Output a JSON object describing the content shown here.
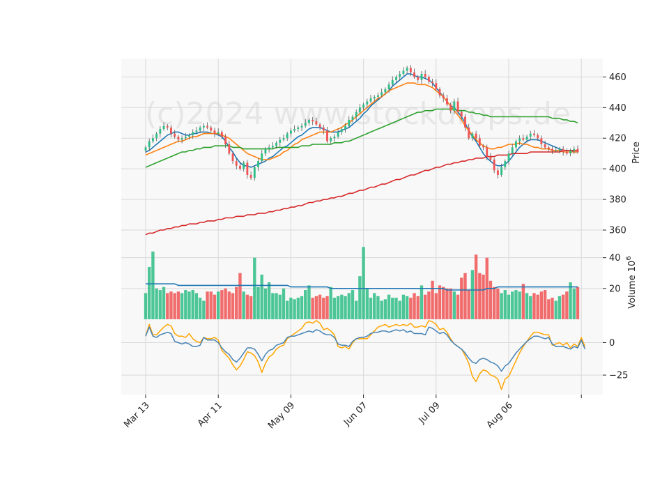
{
  "chart_data": {
    "type": "candlestick",
    "watermark": "(c)2024 www.stockdrops.de",
    "x_tick_labels": [
      "Mar 13",
      "Apr 11",
      "May 09",
      "Jun 07",
      "Jul 09",
      "Aug 06"
    ],
    "x_tick_indices": [
      0,
      20,
      40,
      60,
      80,
      100
    ],
    "n_points": 120,
    "price_panel": {
      "ylabel": "Price",
      "ylim": [
        350,
        472
      ],
      "yticks": [
        360,
        380,
        400,
        420,
        440,
        460
      ],
      "close": [
        414,
        418,
        420,
        423,
        426,
        428,
        427,
        423,
        421,
        419,
        420,
        421,
        422,
        424,
        425,
        427,
        428,
        427,
        425,
        423,
        424,
        421,
        416,
        410,
        405,
        402,
        400,
        404,
        396,
        394,
        401,
        405,
        410,
        413,
        414,
        415,
        417,
        419,
        420,
        423,
        425,
        426,
        427,
        428,
        430,
        432,
        431,
        429,
        427,
        425,
        418,
        420,
        421,
        424,
        426,
        428,
        432,
        434,
        437,
        440,
        442,
        444,
        446,
        447,
        448,
        450,
        452,
        455,
        458,
        460,
        462,
        464,
        466,
        463,
        460,
        458,
        462,
        460,
        457,
        456,
        452,
        448,
        446,
        442,
        438,
        444,
        437,
        434,
        427,
        420,
        423,
        420,
        415,
        414,
        408,
        406,
        399,
        396,
        401,
        405,
        410,
        414,
        418,
        420,
        419,
        421,
        423,
        422,
        420,
        416,
        414,
        413,
        412,
        412,
        413,
        411,
        410,
        412,
        413,
        411
      ],
      "moving_averages": [
        {
          "color": "#1f77b4",
          "values": [
            411,
            412,
            414,
            416,
            418,
            420,
            422,
            423,
            424,
            424,
            423,
            422,
            422,
            423,
            423,
            424,
            424,
            424,
            423,
            423,
            422,
            421,
            418,
            414,
            411,
            407,
            404,
            402,
            402,
            401,
            402,
            403,
            404,
            405,
            407,
            408,
            410,
            412,
            414,
            415,
            417,
            419,
            421,
            422,
            424,
            426,
            427,
            427,
            427,
            426,
            425,
            424,
            424,
            424,
            425,
            426,
            427,
            429,
            431,
            433,
            436,
            438,
            441,
            443,
            445,
            447,
            449,
            451,
            454,
            456,
            458,
            460,
            462,
            462,
            461,
            460,
            460,
            459,
            458,
            456,
            453,
            450,
            447,
            444,
            441,
            440,
            437,
            434,
            430,
            425,
            421,
            418,
            414,
            410,
            407,
            405,
            403,
            402,
            402,
            403,
            405,
            408,
            411,
            414,
            416,
            418,
            419,
            419,
            419,
            418,
            417,
            416,
            415,
            414,
            413,
            412,
            412,
            412,
            411,
            411
          ]
        },
        {
          "color": "#ff7f0e",
          "values": [
            409,
            410,
            411,
            412,
            413,
            414,
            415,
            416,
            417,
            418,
            418,
            419,
            420,
            421,
            421,
            422,
            423,
            423,
            423,
            423,
            423,
            422,
            421,
            420,
            418,
            416,
            414,
            412,
            410,
            409,
            408,
            407,
            406,
            406,
            406,
            407,
            408,
            409,
            411,
            412,
            414,
            416,
            417,
            419,
            420,
            421,
            422,
            423,
            424,
            424,
            424,
            424,
            425,
            426,
            427,
            429,
            430,
            432,
            434,
            436,
            438,
            440,
            442,
            444,
            446,
            447,
            449,
            451,
            452,
            453,
            454,
            455,
            456,
            456,
            456,
            455,
            455,
            455,
            454,
            453,
            451,
            449,
            447,
            444,
            441,
            438,
            435,
            432,
            428,
            425,
            422,
            419,
            417,
            415,
            414,
            413,
            413,
            414,
            414,
            415,
            416,
            416,
            416,
            417,
            416,
            416,
            415,
            414,
            414,
            413,
            413,
            413,
            412,
            412,
            412,
            411,
            411,
            411,
            411,
            411
          ]
        },
        {
          "color": "#2ca02c",
          "values": [
            401,
            402,
            403,
            404,
            405,
            406,
            407,
            408,
            409,
            410,
            411,
            411,
            412,
            412,
            413,
            413,
            414,
            414,
            414,
            415,
            415,
            415,
            415,
            415,
            414,
            414,
            414,
            413,
            413,
            413,
            413,
            413,
            413,
            413,
            413,
            413,
            414,
            414,
            414,
            414,
            414,
            414,
            414,
            415,
            415,
            415,
            416,
            416,
            416,
            416,
            416,
            416,
            417,
            417,
            417,
            418,
            418,
            419,
            420,
            421,
            422,
            423,
            424,
            425,
            426,
            427,
            428,
            429,
            430,
            431,
            432,
            433,
            434,
            435,
            436,
            437,
            437,
            438,
            438,
            438,
            439,
            439,
            439,
            439,
            439,
            439,
            438,
            438,
            438,
            437,
            437,
            436,
            436,
            435,
            435,
            434,
            434,
            434,
            434,
            434,
            434,
            434,
            434,
            434,
            434,
            434,
            434,
            434,
            434,
            434,
            434,
            434,
            433,
            433,
            433,
            432,
            432,
            431,
            431,
            430
          ]
        },
        {
          "color": "#d62728",
          "values": [
            357,
            358,
            358,
            359,
            360,
            360,
            361,
            361,
            362,
            362,
            363,
            363,
            364,
            364,
            364,
            365,
            365,
            366,
            366,
            366,
            367,
            367,
            368,
            368,
            368,
            369,
            369,
            369,
            370,
            370,
            370,
            371,
            371,
            371,
            372,
            372,
            373,
            373,
            374,
            374,
            375,
            375,
            376,
            376,
            377,
            378,
            378,
            379,
            379,
            380,
            380,
            381,
            381,
            382,
            382,
            383,
            384,
            384,
            385,
            386,
            386,
            387,
            388,
            388,
            389,
            390,
            390,
            391,
            392,
            393,
            393,
            394,
            395,
            396,
            396,
            397,
            398,
            399,
            399,
            400,
            401,
            401,
            402,
            403,
            403,
            404,
            404,
            405,
            405,
            406,
            406,
            407,
            407,
            407,
            408,
            408,
            408,
            409,
            409,
            409,
            409,
            410,
            410,
            410,
            410,
            410,
            411,
            411,
            411,
            411,
            411,
            411,
            411,
            411,
            411,
            412,
            412,
            412,
            412,
            412
          ]
        }
      ]
    },
    "volume_panel": {
      "ylabel": "Volume  10^6",
      "ylim": [
        0,
        48
      ],
      "yticks": [
        20,
        40
      ],
      "volume": [
        17,
        34,
        44,
        20,
        19,
        21,
        17,
        18,
        17,
        18,
        17,
        19,
        18,
        19,
        17,
        14,
        12,
        18,
        18,
        16,
        18,
        19,
        20,
        18,
        17,
        21,
        30,
        18,
        16,
        15,
        40,
        21,
        29,
        20,
        24,
        17,
        17,
        16,
        20,
        12,
        14,
        13,
        14,
        15,
        19,
        22,
        14,
        15,
        16,
        14,
        15,
        21,
        14,
        15,
        16,
        15,
        17,
        19,
        12,
        28,
        47,
        20,
        14,
        17,
        15,
        12,
        13,
        16,
        14,
        14,
        12,
        16,
        15,
        14,
        17,
        15,
        22,
        16,
        18,
        25,
        17,
        22,
        21,
        20,
        20,
        18,
        16,
        27,
        30,
        19,
        32,
        42,
        30,
        29,
        40,
        25,
        21,
        20,
        17,
        19,
        16,
        18,
        19,
        18,
        23,
        17,
        15,
        17,
        16,
        18,
        19,
        13,
        14,
        12,
        15,
        16,
        18,
        24,
        20,
        21
      ],
      "volume_ma": [
        23,
        23,
        23,
        23,
        23,
        23,
        23,
        23,
        23,
        22,
        22,
        22,
        22,
        22,
        22,
        22,
        22,
        22,
        22,
        22,
        22,
        22,
        22,
        22,
        22,
        22,
        22,
        22,
        22,
        22,
        22,
        22,
        22,
        22,
        22,
        22,
        22,
        22,
        22,
        22,
        21,
        21,
        21,
        21,
        21,
        21,
        21,
        21,
        21,
        21,
        21,
        20,
        20,
        20,
        20,
        20,
        20,
        20,
        20,
        20,
        20,
        20,
        20,
        20,
        20,
        20,
        20,
        20,
        20,
        20,
        20,
        20,
        20,
        20,
        20,
        20,
        20,
        20,
        20,
        20,
        20,
        20,
        20,
        19,
        19,
        19,
        19,
        19,
        19,
        19,
        19,
        19,
        19,
        19,
        20,
        20,
        20,
        21,
        21,
        21,
        21,
        21,
        21,
        21,
        21,
        21,
        21,
        21,
        21,
        21,
        21,
        21,
        21,
        21,
        21,
        21,
        21,
        21,
        21,
        21
      ]
    },
    "indicator_panel": {
      "ylim": [
        -40,
        18
      ],
      "yticks": [
        0,
        -25
      ],
      "series": [
        {
          "color": "#ffa500",
          "values": [
            5,
            14,
            6,
            6,
            9,
            12,
            14,
            13,
            7,
            5,
            5,
            4,
            7,
            3,
            1,
            0,
            4,
            3,
            3,
            4,
            2,
            -6,
            -9,
            -12,
            -17,
            -21,
            -18,
            -13,
            -7,
            -8,
            -10,
            -15,
            -23,
            -16,
            -11,
            -9,
            -5,
            -3,
            -2,
            3,
            5,
            7,
            9,
            11,
            15,
            16,
            15,
            17,
            15,
            10,
            11,
            9,
            6,
            -3,
            -4,
            -3,
            -5,
            0,
            3,
            3,
            3,
            3,
            6,
            9,
            12,
            13,
            14,
            12,
            13,
            14,
            13,
            14,
            13,
            15,
            12,
            12,
            13,
            12,
            17,
            16,
            14,
            10,
            11,
            8,
            3,
            -1,
            -3,
            -5,
            -10,
            -16,
            -26,
            -30,
            -24,
            -21,
            -22,
            -25,
            -26,
            -28,
            -36,
            -28,
            -26,
            -20,
            -14,
            -8,
            -3,
            1,
            5,
            8,
            8,
            7,
            6,
            6,
            -2,
            -1,
            0,
            -2,
            0,
            -4,
            -1,
            -3,
            4,
            -3
          ]
        },
        {
          "color": "#4682b4",
          "values": [
            5,
            12,
            5,
            4,
            6,
            7,
            8,
            7,
            1,
            0,
            -1,
            0,
            -1,
            -3,
            -3,
            -2,
            4,
            2,
            2,
            2,
            0,
            -4,
            -7,
            -9,
            -13,
            -15,
            -12,
            -8,
            -4,
            -4,
            -5,
            -9,
            -14,
            -9,
            -6,
            -5,
            -2,
            -1,
            0,
            4,
            5,
            5,
            6,
            7,
            8,
            9,
            8,
            10,
            9,
            7,
            6,
            6,
            4,
            -1,
            -2,
            -2,
            -3,
            1,
            3,
            4,
            4,
            5,
            7,
            8,
            8,
            9,
            9,
            8,
            9,
            10,
            9,
            10,
            8,
            9,
            7,
            7,
            7,
            6,
            12,
            11,
            9,
            7,
            8,
            6,
            2,
            -1,
            -3,
            -5,
            -8,
            -12,
            -15,
            -16,
            -13,
            -12,
            -13,
            -15,
            -16,
            -18,
            -22,
            -18,
            -16,
            -12,
            -8,
            -5,
            -2,
            1,
            3,
            5,
            5,
            4,
            3,
            4,
            -1,
            -3,
            -3,
            -3,
            -4,
            -5,
            -3,
            -4,
            2,
            -5
          ]
        }
      ]
    },
    "colors": {
      "up": "#2ebd85",
      "down": "#f05454",
      "grid": "#d9d9d9",
      "panel_bg": "#f8f8f8",
      "volume_ma": "#1f77b4"
    },
    "legend": "none",
    "grid": true
  }
}
